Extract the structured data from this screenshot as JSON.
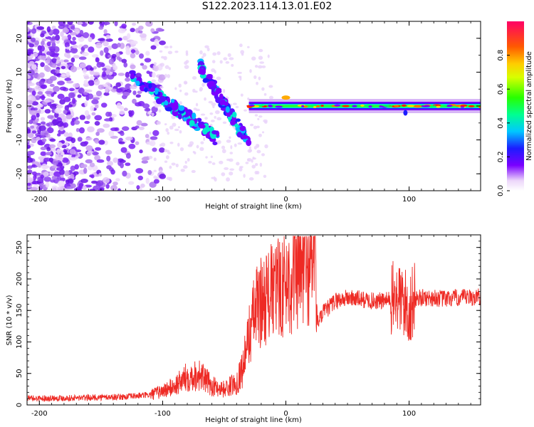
{
  "title": "S122.2023.114.13.01.E02",
  "chart_data": [
    {
      "type": "heatmap",
      "xlabel": "Height of straight line (km)",
      "ylabel": "Frequency (Hz)",
      "xlim": [
        -210,
        158
      ],
      "ylim": [
        -25,
        25
      ],
      "xticks": [
        -200,
        -100,
        0,
        100
      ],
      "yticks": [
        -20,
        -10,
        0,
        10,
        20
      ],
      "colorbar": {
        "label": "Normalized spectral amplitude",
        "range": [
          0,
          1
        ],
        "ticks": [
          "0.0",
          "0.2",
          "0.4",
          "0.6",
          "0.8"
        ]
      },
      "features": {
        "noise_region_x": [
          -210,
          -105
        ],
        "descending_streak_1": {
          "x": [
            -125,
            -55
          ],
          "y": [
            9,
            -10
          ]
        },
        "descending_streak_2": {
          "x": [
            -70,
            -30
          ],
          "y": [
            12,
            -11
          ]
        },
        "carrier_line": {
          "x": [
            -30,
            158
          ],
          "y": [
            0,
            0
          ]
        }
      }
    },
    {
      "type": "line",
      "xlabel": "Height of straight line (km)",
      "ylabel": "SNR (10 * v/v)",
      "xlim": [
        -210,
        158
      ],
      "ylim": [
        0,
        270
      ],
      "xticks": [
        -200,
        -100,
        0,
        100
      ],
      "yticks": [
        0,
        50,
        100,
        150,
        200,
        250
      ],
      "x": [
        -210,
        -190,
        -170,
        -150,
        -130,
        -110,
        -100,
        -90,
        -80,
        -70,
        -60,
        -50,
        -40,
        -35,
        -30,
        -25,
        -20,
        -10,
        0,
        10,
        20,
        24,
        25,
        26,
        30,
        40,
        50,
        60,
        70,
        80,
        90,
        95,
        100,
        105,
        110,
        120,
        130,
        140,
        150,
        158
      ],
      "y": [
        10,
        11,
        11,
        12,
        13,
        16,
        22,
        30,
        45,
        48,
        30,
        25,
        35,
        60,
        110,
        150,
        165,
        180,
        195,
        205,
        225,
        250,
        150,
        130,
        145,
        165,
        170,
        168,
        165,
        165,
        170,
        165,
        150,
        170,
        170,
        170,
        168,
        170,
        170,
        172
      ],
      "color": "#ee2a24"
    }
  ]
}
